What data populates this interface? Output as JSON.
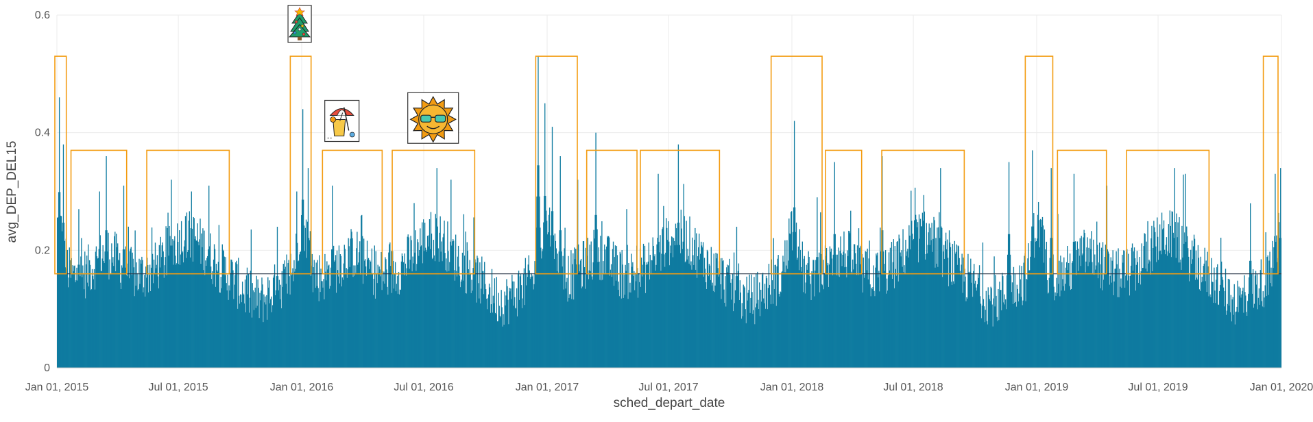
{
  "chart_data": {
    "type": "bar",
    "x_field": "sched_depart_date",
    "y_field": "avg_DEP_DEL15",
    "xlabel": "sched_depart_date",
    "ylabel": "avg_DEP_DEL15",
    "x_range": [
      "2015-01-01",
      "2020-01-01"
    ],
    "ylim": [
      0,
      0.6
    ],
    "grid": true,
    "bar_color": "#0e7ba0",
    "reference_line": {
      "y": 0.16,
      "color": "#2b3a4a"
    },
    "highlight_color": "#f39c12",
    "x_ticks": [
      {
        "date": "2015-01-01",
        "label": "Jan 01, 2015"
      },
      {
        "date": "2015-07-01",
        "label": "Jul 01, 2015"
      },
      {
        "date": "2016-01-01",
        "label": "Jan 01, 2016"
      },
      {
        "date": "2016-07-01",
        "label": "Jul 01, 2016"
      },
      {
        "date": "2017-01-01",
        "label": "Jan 01, 2017"
      },
      {
        "date": "2017-07-01",
        "label": "Jul 01, 2017"
      },
      {
        "date": "2018-01-01",
        "label": "Jan 01, 2018"
      },
      {
        "date": "2018-07-01",
        "label": "Jul 01, 2018"
      },
      {
        "date": "2019-01-01",
        "label": "Jan 01, 2019"
      },
      {
        "date": "2019-07-01",
        "label": "Jul 01, 2019"
      },
      {
        "date": "2020-01-01",
        "label": "Jan 01, 2020"
      }
    ],
    "y_ticks": [
      {
        "value": 0,
        "label": "0"
      },
      {
        "value": 0.2,
        "label": "0.2"
      },
      {
        "value": 0.4,
        "label": "0.4"
      },
      {
        "value": 0.6,
        "label": "0.6"
      }
    ],
    "seasons": [
      {
        "kind": "winter",
        "start": "2014-12-15",
        "end": "2015-01-15",
        "y_low": 0.16,
        "y_high": 0.53
      },
      {
        "kind": "spring",
        "start": "2015-01-22",
        "end": "2015-04-15",
        "y_low": 0.16,
        "y_high": 0.37
      },
      {
        "kind": "summer",
        "start": "2015-05-15",
        "end": "2015-09-15",
        "y_low": 0.16,
        "y_high": 0.37
      },
      {
        "kind": "winter",
        "start": "2015-12-15",
        "end": "2016-01-15",
        "y_low": 0.16,
        "y_high": 0.53
      },
      {
        "kind": "spring",
        "start": "2016-02-01",
        "end": "2016-04-30",
        "y_low": 0.16,
        "y_high": 0.37
      },
      {
        "kind": "summer",
        "start": "2016-05-15",
        "end": "2016-09-15",
        "y_low": 0.16,
        "y_high": 0.37
      },
      {
        "kind": "winter",
        "start": "2016-12-15",
        "end": "2017-02-15",
        "y_low": 0.16,
        "y_high": 0.53
      },
      {
        "kind": "spring",
        "start": "2017-03-01",
        "end": "2017-05-15",
        "y_low": 0.16,
        "y_high": 0.37
      },
      {
        "kind": "summer",
        "start": "2017-05-20",
        "end": "2017-09-15",
        "y_low": 0.16,
        "y_high": 0.37
      },
      {
        "kind": "winter",
        "start": "2017-12-01",
        "end": "2018-02-15",
        "y_low": 0.16,
        "y_high": 0.53
      },
      {
        "kind": "spring",
        "start": "2018-02-20",
        "end": "2018-04-15",
        "y_low": 0.16,
        "y_high": 0.37
      },
      {
        "kind": "summer",
        "start": "2018-05-15",
        "end": "2018-09-15",
        "y_low": 0.16,
        "y_high": 0.37
      },
      {
        "kind": "winter",
        "start": "2018-12-15",
        "end": "2019-01-25",
        "y_low": 0.16,
        "y_high": 0.53
      },
      {
        "kind": "spring",
        "start": "2019-02-01",
        "end": "2019-04-15",
        "y_low": 0.16,
        "y_high": 0.37
      },
      {
        "kind": "summer",
        "start": "2019-05-15",
        "end": "2019-09-15",
        "y_low": 0.16,
        "y_high": 0.37
      },
      {
        "kind": "winter",
        "start": "2019-12-05",
        "end": "2020-01-01",
        "y_low": 0.16,
        "y_high": 0.53
      }
    ],
    "icons": [
      {
        "name": "christmas-tree-icon",
        "date": "2015-12-29",
        "y": 0.585
      },
      {
        "name": "beach-drink-icon",
        "date": "2016-03-01",
        "y": 0.42
      },
      {
        "name": "sun-sunglasses-icon",
        "date": "2016-07-15",
        "y": 0.425
      }
    ],
    "peaks": [
      [
        "2015-01-04",
        0.46
      ],
      [
        "2015-01-10",
        0.38
      ],
      [
        "2015-02-02",
        0.27
      ],
      [
        "2015-03-05",
        0.3
      ],
      [
        "2015-03-15",
        0.36
      ],
      [
        "2015-04-10",
        0.31
      ],
      [
        "2015-06-20",
        0.32
      ],
      [
        "2015-07-20",
        0.3
      ],
      [
        "2015-08-15",
        0.31
      ],
      [
        "2015-11-25",
        0.24
      ],
      [
        "2015-12-24",
        0.3
      ],
      [
        "2016-01-02",
        0.44
      ],
      [
        "2016-01-10",
        0.34
      ],
      [
        "2016-02-15",
        0.31
      ],
      [
        "2016-03-30",
        0.26
      ],
      [
        "2016-07-20",
        0.34
      ],
      [
        "2016-08-10",
        0.32
      ],
      [
        "2016-12-18",
        0.53
      ],
      [
        "2016-12-28",
        0.45
      ],
      [
        "2017-01-08",
        0.41
      ],
      [
        "2017-01-20",
        0.36
      ],
      [
        "2017-02-15",
        0.32
      ],
      [
        "2017-03-14",
        0.4
      ],
      [
        "2017-06-15",
        0.33
      ],
      [
        "2017-07-15",
        0.38
      ],
      [
        "2017-10-10",
        0.24
      ],
      [
        "2018-01-04",
        0.42
      ],
      [
        "2018-02-07",
        0.29
      ],
      [
        "2018-03-05",
        0.35
      ],
      [
        "2018-05-15",
        0.36
      ],
      [
        "2018-08-10",
        0.34
      ],
      [
        "2018-11-20",
        0.35
      ],
      [
        "2018-12-25",
        0.37
      ],
      [
        "2019-01-22",
        0.34
      ],
      [
        "2019-02-25",
        0.33
      ],
      [
        "2019-04-15",
        0.31
      ],
      [
        "2019-07-25",
        0.34
      ],
      [
        "2019-08-10",
        0.33
      ],
      [
        "2019-11-15",
        0.28
      ],
      [
        "2019-12-22",
        0.33
      ],
      [
        "2019-12-30",
        0.34
      ]
    ]
  }
}
